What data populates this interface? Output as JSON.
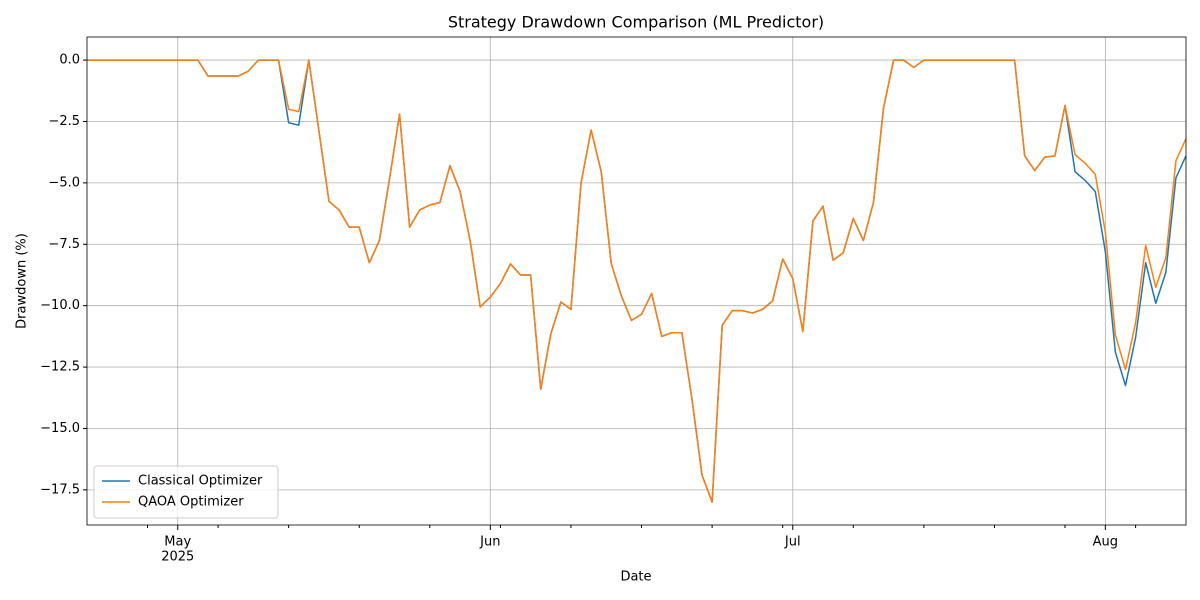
{
  "chart_data": {
    "type": "line",
    "title": "Strategy Drawdown Comparison (ML Predictor)",
    "xlabel": "Date",
    "ylabel": "Drawdown (%)",
    "x": [
      "2025-04-22",
      "2025-05-03",
      "2025-05-04",
      "2025-05-07",
      "2025-05-08",
      "2025-05-09",
      "2025-05-11",
      "2025-05-12",
      "2025-05-13",
      "2025-05-14",
      "2025-05-16",
      "2025-05-17",
      "2025-05-18",
      "2025-05-19",
      "2025-05-20",
      "2025-05-21",
      "2025-05-22",
      "2025-05-23",
      "2025-05-24",
      "2025-05-25",
      "2025-05-26",
      "2025-05-27",
      "2025-05-28",
      "2025-05-29",
      "2025-05-30",
      "2025-05-31",
      "2025-06-01",
      "2025-06-02",
      "2025-06-03",
      "2025-06-04",
      "2025-06-05",
      "2025-06-06",
      "2025-06-07",
      "2025-06-08",
      "2025-06-09",
      "2025-06-10",
      "2025-06-11",
      "2025-06-12",
      "2025-06-13",
      "2025-06-14",
      "2025-06-15",
      "2025-06-16",
      "2025-06-17",
      "2025-06-18",
      "2025-06-19",
      "2025-06-20",
      "2025-06-21",
      "2025-06-22",
      "2025-06-23",
      "2025-06-24",
      "2025-06-25",
      "2025-06-26",
      "2025-06-27",
      "2025-06-28",
      "2025-06-29",
      "2025-06-30",
      "2025-07-01",
      "2025-07-02",
      "2025-07-03",
      "2025-07-04",
      "2025-07-05",
      "2025-07-06",
      "2025-07-07",
      "2025-07-08",
      "2025-07-09",
      "2025-07-10",
      "2025-07-11",
      "2025-07-12",
      "2025-07-13",
      "2025-07-14",
      "2025-07-23",
      "2025-07-24",
      "2025-07-25",
      "2025-07-26",
      "2025-07-27",
      "2025-07-28",
      "2025-07-29",
      "2025-07-30",
      "2025-07-31",
      "2025-08-01",
      "2025-08-02",
      "2025-08-03",
      "2025-08-04",
      "2025-08-05",
      "2025-08-06",
      "2025-08-07",
      "2025-08-08",
      "2025-08-09"
    ],
    "series": [
      {
        "name": "Classical Optimizer",
        "color": "#1f77b4",
        "values": [
          0,
          0,
          -0.65,
          -0.65,
          -0.45,
          0,
          0,
          -2.55,
          -2.65,
          0,
          -5.75,
          -6.1,
          -6.8,
          -6.8,
          -8.25,
          -7.35,
          -4.85,
          -2.2,
          -6.8,
          -6.1,
          -5.9,
          -5.8,
          -4.3,
          -5.35,
          -7.35,
          -10.05,
          -9.65,
          -9.1,
          -8.3,
          -8.75,
          -8.75,
          -13.4,
          -11.15,
          -9.85,
          -10.15,
          -5.0,
          -2.85,
          -4.55,
          -8.3,
          -9.6,
          -10.6,
          -10.35,
          -9.5,
          -11.25,
          -11.1,
          -11.1,
          -13.8,
          -16.9,
          -18.0,
          -10.8,
          -10.2,
          -10.2,
          -10.3,
          -10.15,
          -9.8,
          -8.1,
          -8.9,
          -11.05,
          -6.55,
          -5.95,
          -8.15,
          -7.85,
          -6.45,
          -7.35,
          -5.8,
          -1.95,
          0,
          0,
          -0.3,
          0,
          0,
          -3.9,
          -4.5,
          -3.95,
          -3.9,
          -1.85,
          -4.55,
          -4.9,
          -5.35,
          -7.8,
          -11.9,
          -13.25,
          -11.3,
          -8.25,
          -9.9,
          -8.65,
          -4.8,
          -3.9
        ]
      },
      {
        "name": "QAOA Optimizer",
        "color": "#ff7f0e",
        "values": [
          0,
          0,
          -0.65,
          -0.65,
          -0.45,
          0,
          0,
          -2.0,
          -2.1,
          0,
          -5.75,
          -6.1,
          -6.8,
          -6.8,
          -8.25,
          -7.35,
          -4.85,
          -2.2,
          -6.8,
          -6.1,
          -5.9,
          -5.8,
          -4.3,
          -5.35,
          -7.35,
          -10.05,
          -9.65,
          -9.1,
          -8.3,
          -8.75,
          -8.75,
          -13.4,
          -11.15,
          -9.85,
          -10.15,
          -5.0,
          -2.85,
          -4.55,
          -8.3,
          -9.6,
          -10.6,
          -10.35,
          -9.5,
          -11.25,
          -11.1,
          -11.1,
          -13.8,
          -16.9,
          -18.0,
          -10.8,
          -10.2,
          -10.2,
          -10.3,
          -10.15,
          -9.8,
          -8.1,
          -8.9,
          -11.05,
          -6.55,
          -5.95,
          -8.15,
          -7.85,
          -6.45,
          -7.35,
          -5.8,
          -1.95,
          0,
          0,
          -0.3,
          0,
          0,
          -3.9,
          -4.5,
          -3.95,
          -3.9,
          -1.85,
          -3.85,
          -4.2,
          -4.65,
          -7.0,
          -11.2,
          -12.6,
          -10.7,
          -7.55,
          -9.25,
          -8.05,
          -4.1,
          -3.2
        ]
      }
    ],
    "xlim": [
      "2025-04-22",
      "2025-08-09"
    ],
    "xticks": [
      {
        "value": "2025-05-01",
        "label": "May"
      },
      {
        "value": "2025-06-01",
        "label": "Jun"
      },
      {
        "value": "2025-07-01",
        "label": "Jul"
      },
      {
        "value": "2025-08-01",
        "label": "Aug"
      }
    ],
    "x_year_label": "2025",
    "xminorticks": [
      "2025-04-28",
      "2025-05-05",
      "2025-05-12",
      "2025-05-19",
      "2025-05-26",
      "2025-06-02",
      "2025-06-09",
      "2025-06-16",
      "2025-06-23",
      "2025-06-30",
      "2025-07-07",
      "2025-07-14",
      "2025-07-21",
      "2025-07-28",
      "2025-08-04"
    ],
    "ylim": [
      -18.93,
      0.94
    ],
    "yticks": [
      {
        "value": -17.5,
        "label": "−17.5"
      },
      {
        "value": -15,
        "label": "−15.0"
      },
      {
        "value": -12.5,
        "label": "−12.5"
      },
      {
        "value": -10,
        "label": "−10.0"
      },
      {
        "value": -7.5,
        "label": "−7.5"
      },
      {
        "value": -5,
        "label": "−5.0"
      },
      {
        "value": -2.5,
        "label": "−2.5"
      },
      {
        "value": 0,
        "label": "0.0"
      }
    ],
    "grid": true,
    "legend": "lower left"
  }
}
